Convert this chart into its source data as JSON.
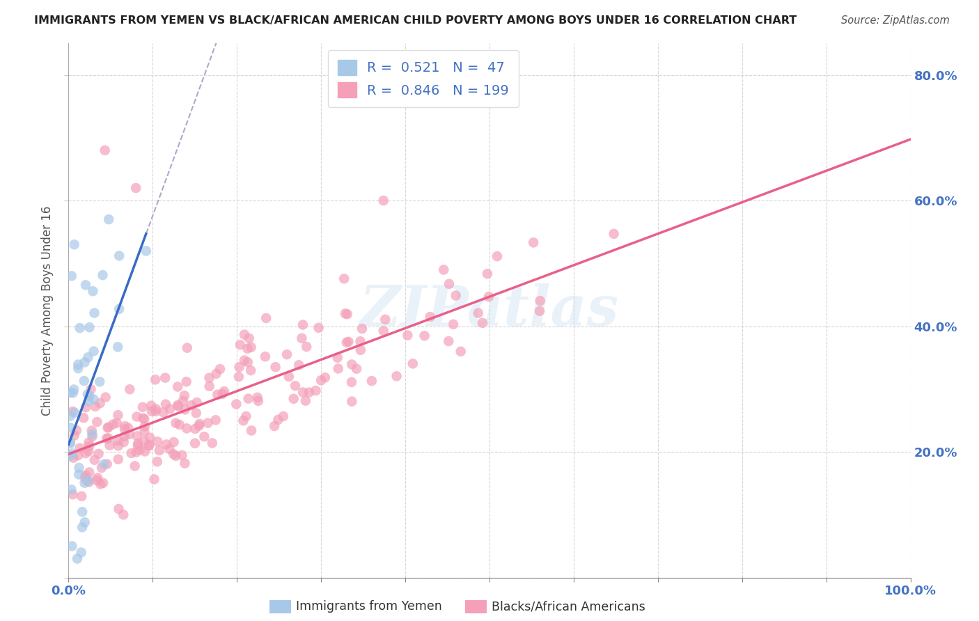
{
  "title": "IMMIGRANTS FROM YEMEN VS BLACK/AFRICAN AMERICAN CHILD POVERTY AMONG BOYS UNDER 16 CORRELATION CHART",
  "source": "Source: ZipAtlas.com",
  "ylabel": "Child Poverty Among Boys Under 16",
  "background_color": "#ffffff",
  "watermark": "ZIPatlas",
  "blue_R": 0.521,
  "blue_N": 47,
  "pink_R": 0.846,
  "pink_N": 199,
  "blue_color": "#a8c8e8",
  "pink_color": "#f4a0b8",
  "blue_line_color": "#3a6bc4",
  "pink_line_color": "#e8608a",
  "blue_label": "Immigrants from Yemen",
  "pink_label": "Blacks/African Americans",
  "xlim": [
    0,
    1.0
  ],
  "ylim": [
    0,
    0.85
  ],
  "ytick_positions": [
    0.0,
    0.2,
    0.4,
    0.6,
    0.8
  ],
  "xtick_positions": [
    0.0,
    0.1,
    0.2,
    0.3,
    0.4,
    0.5,
    0.6,
    0.7,
    0.8,
    0.9,
    1.0
  ],
  "grid_color": "#cccccc",
  "tick_label_color": "#4472c4",
  "title_color": "#222222",
  "source_color": "#555555",
  "ylabel_color": "#555555"
}
